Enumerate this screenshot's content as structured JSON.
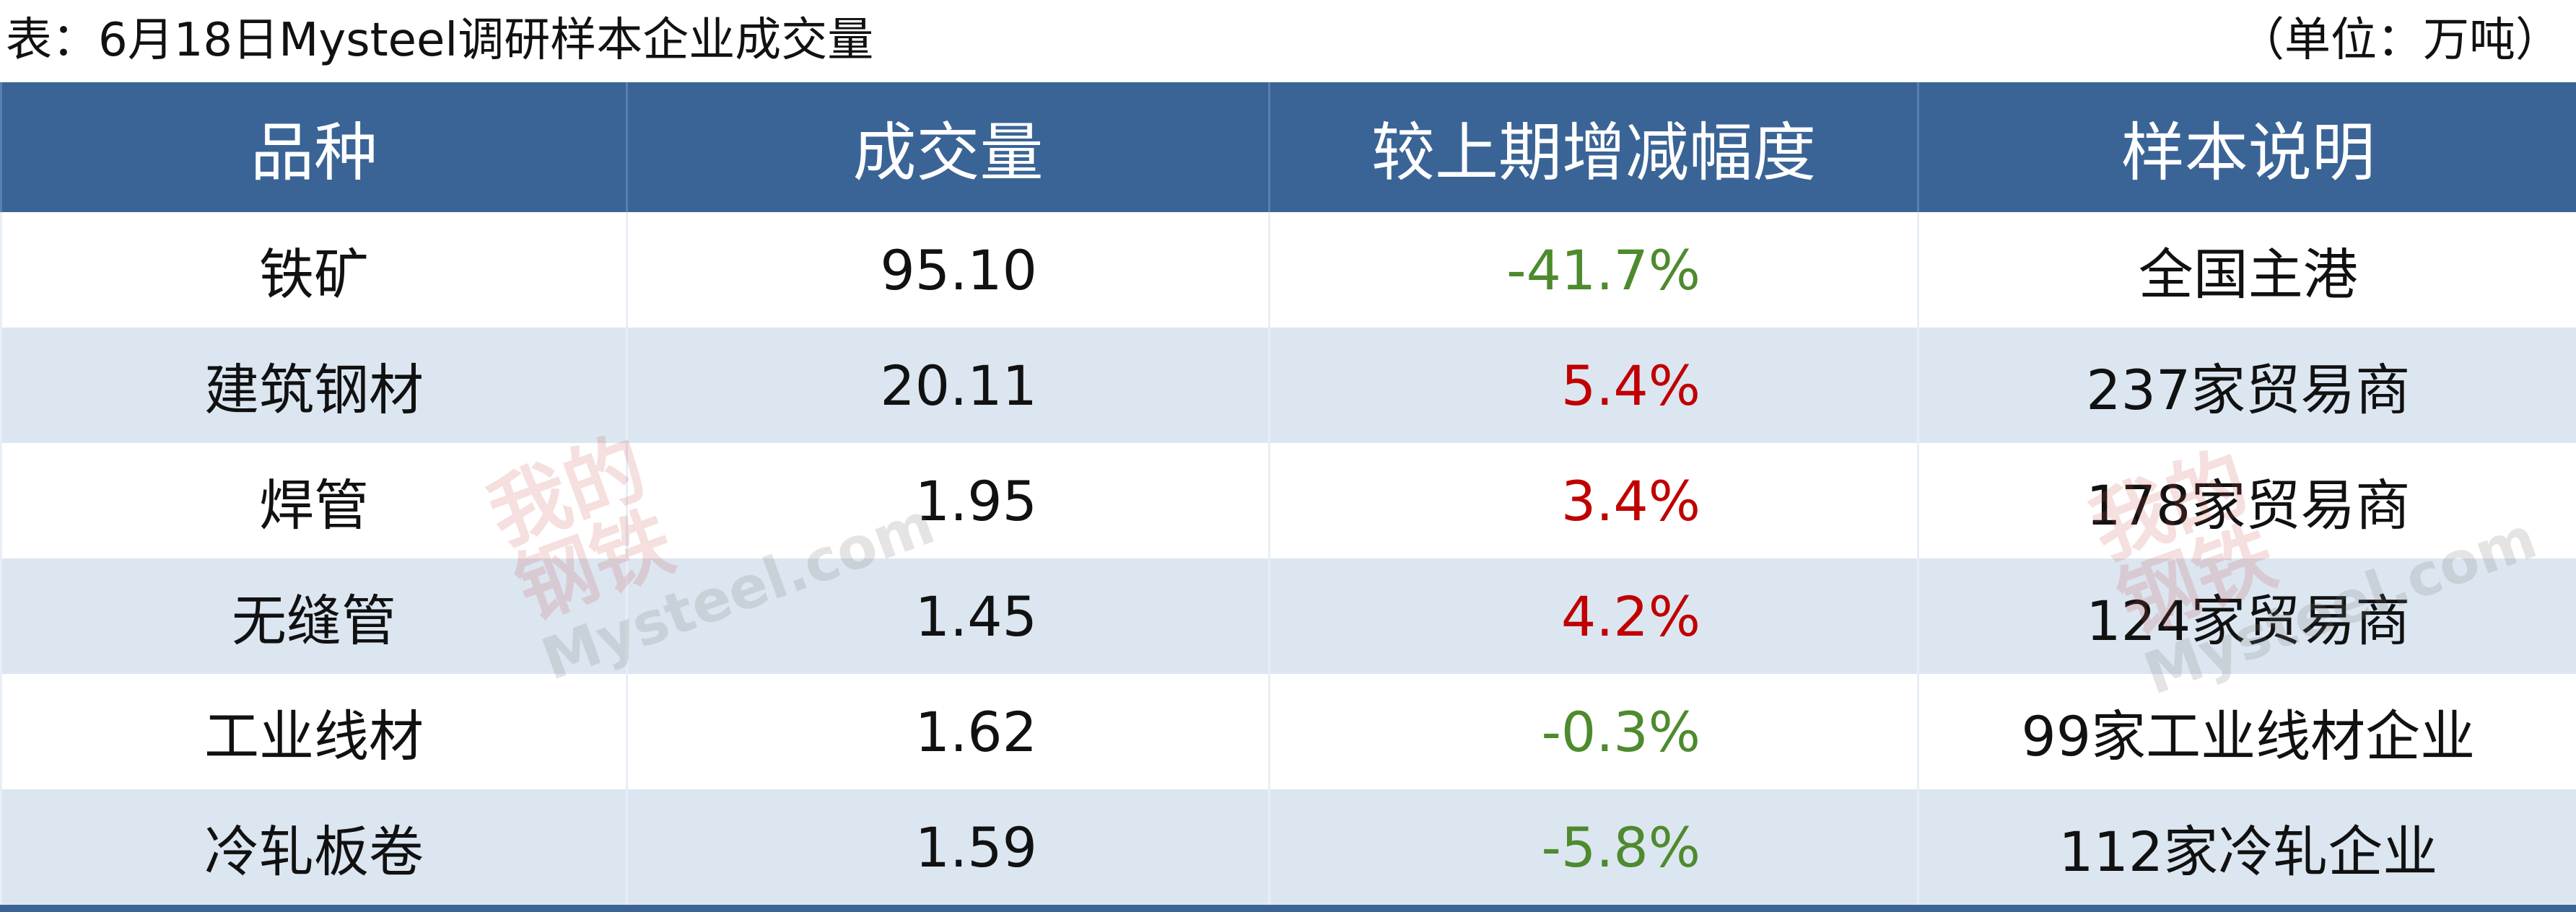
{
  "title": "表：6月18日Mysteel调研样本企业成交量",
  "unit": "（单位：万吨）",
  "table": {
    "header": [
      "品种",
      "成交量",
      "较上期增减幅度",
      "样本说明"
    ],
    "rows": [
      [
        "铁矿",
        "95.10",
        "-41.7%",
        "全国主港"
      ],
      [
        "建筑钢材",
        "20.11",
        "5.4%",
        "237家贸易商"
      ],
      [
        "焊管",
        "1.95",
        "3.4%",
        "178家贸易商"
      ],
      [
        "无缝管",
        "1.45",
        "4.2%",
        "124家贸易商"
      ],
      [
        "工业线材",
        "1.62",
        "-0.3%",
        "99家工业线材企业"
      ],
      [
        "冷轧板卷",
        "1.59",
        "-5.8%",
        "112家冷轧企业"
      ]
    ]
  },
  "watermark": {
    "logo": "我的钢铁",
    "site": "Mysteel.com"
  }
}
